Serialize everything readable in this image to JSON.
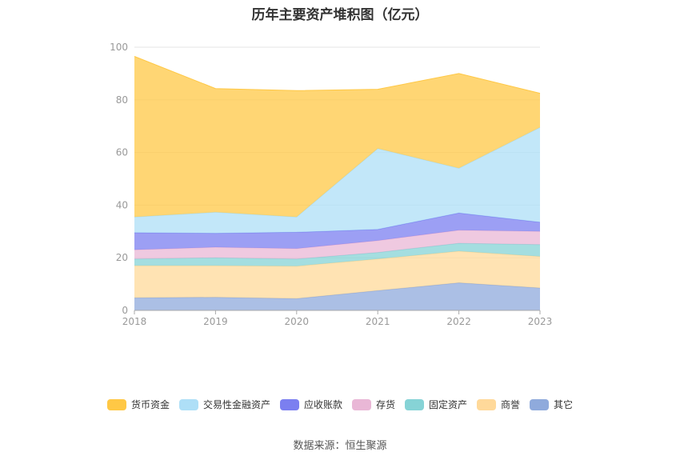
{
  "chart_data": {
    "type": "area",
    "title": "历年主要资产堆积图（亿元）",
    "x": [
      "2018",
      "2019",
      "2020",
      "2021",
      "2022",
      "2023"
    ],
    "ylim": [
      0,
      100
    ],
    "yticks": [
      "0",
      "20",
      "40",
      "60",
      "80",
      "100"
    ],
    "grid": true,
    "legend_position": "bottom",
    "series": [
      {
        "name": "其它",
        "values": [
          4.8,
          5.0,
          4.5,
          7.5,
          10.5,
          8.5
        ],
        "color": "#8FAADC"
      },
      {
        "name": "商誉",
        "values": [
          12.2,
          12.0,
          12.3,
          12.0,
          12.0,
          12.0
        ],
        "color": "#FFD99A"
      },
      {
        "name": "固定资产",
        "values": [
          2.5,
          3.0,
          2.7,
          2.5,
          3.0,
          4.5
        ],
        "color": "#86D3D6"
      },
      {
        "name": "存货",
        "values": [
          3.5,
          4.0,
          4.0,
          4.5,
          5.0,
          5.0
        ],
        "color": "#E9B7D6"
      },
      {
        "name": "应收账款",
        "values": [
          6.5,
          5.3,
          6.2,
          4.3,
          6.5,
          3.5
        ],
        "color": "#7B7FF0"
      },
      {
        "name": "交易性金融资产",
        "values": [
          6.0,
          8.0,
          5.8,
          30.7,
          17.0,
          36.0
        ],
        "color": "#AEDFF7"
      },
      {
        "name": "货币资金",
        "values": [
          61.0,
          47.0,
          48.0,
          22.5,
          36.0,
          13.0
        ],
        "color": "#FFC845"
      }
    ]
  },
  "legend": {
    "items": [
      {
        "label": "货币资金",
        "color": "#FFC845"
      },
      {
        "label": "交易性金融资产",
        "color": "#AEDFF7"
      },
      {
        "label": "应收账款",
        "color": "#7B7FF0"
      },
      {
        "label": "存货",
        "color": "#E9B7D6"
      },
      {
        "label": "固定资产",
        "color": "#86D3D6"
      },
      {
        "label": "商誉",
        "color": "#FFD99A"
      },
      {
        "label": "其它",
        "color": "#8FAADC"
      }
    ]
  },
  "footer": {
    "source": "数据来源：恒生聚源"
  }
}
